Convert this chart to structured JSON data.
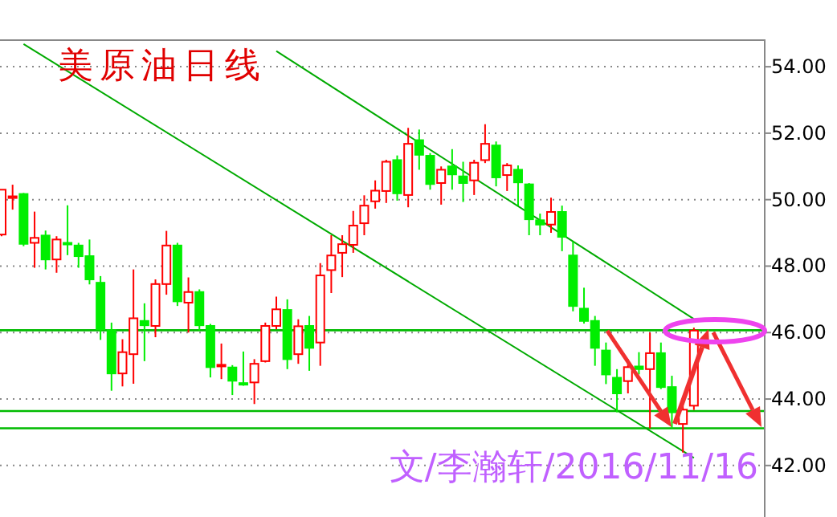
{
  "chart_data": {
    "type": "candlestick",
    "title": "美原油日线",
    "annotations": [
      "文/李瀚轩/2016/11/16"
    ],
    "categories": [
      null,
      null,
      null,
      null,
      null,
      null,
      null,
      null,
      null,
      null,
      null,
      null,
      null,
      null,
      null,
      null,
      null,
      null,
      null,
      null,
      null,
      null,
      null,
      null,
      null,
      null,
      null,
      null,
      null,
      null,
      null,
      null,
      null,
      null,
      null,
      null,
      null,
      null,
      null,
      null,
      null,
      null,
      null,
      null,
      null,
      null,
      null,
      null,
      null,
      null,
      null,
      null,
      null,
      null,
      null,
      null,
      null,
      null,
      null,
      null,
      null,
      null,
      null,
      null
    ],
    "ohlc": [
      [
        48.95,
        50.3,
        48.9,
        50.3
      ],
      [
        50.05,
        50.45,
        49.7,
        50.1
      ],
      [
        50.17,
        50.2,
        48.6,
        48.67
      ],
      [
        48.7,
        49.64,
        47.95,
        48.85
      ],
      [
        48.92,
        49.07,
        47.9,
        48.2
      ],
      [
        48.2,
        48.9,
        47.8,
        48.8
      ],
      [
        48.7,
        49.83,
        48.33,
        48.68
      ],
      [
        48.62,
        48.7,
        47.95,
        48.3
      ],
      [
        48.3,
        48.8,
        47.45,
        47.6
      ],
      [
        47.5,
        47.7,
        45.78,
        46.1
      ],
      [
        46.07,
        46.3,
        44.25,
        44.77
      ],
      [
        44.77,
        45.8,
        44.38,
        45.41
      ],
      [
        45.35,
        47.9,
        44.46,
        46.43
      ],
      [
        46.35,
        46.88,
        45.14,
        46.22
      ],
      [
        46.2,
        47.6,
        45.86,
        47.46
      ],
      [
        47.46,
        49.06,
        47.14,
        48.62
      ],
      [
        48.62,
        48.7,
        46.8,
        46.94
      ],
      [
        46.9,
        47.66,
        46.0,
        47.22
      ],
      [
        47.22,
        47.3,
        46.06,
        46.22
      ],
      [
        46.2,
        46.26,
        44.65,
        44.96
      ],
      [
        45.0,
        45.67,
        44.6,
        45.03
      ],
      [
        44.95,
        45.02,
        44.12,
        44.55
      ],
      [
        44.48,
        45.43,
        44.4,
        44.45
      ],
      [
        44.5,
        45.2,
        43.85,
        45.06
      ],
      [
        45.14,
        46.3,
        45.1,
        46.2
      ],
      [
        46.2,
        47.08,
        46.1,
        46.7
      ],
      [
        46.68,
        47.0,
        44.9,
        45.2
      ],
      [
        45.35,
        46.4,
        45.06,
        46.19
      ],
      [
        46.2,
        46.5,
        44.85,
        45.54
      ],
      [
        45.7,
        48.09,
        45.0,
        47.72
      ],
      [
        47.88,
        48.93,
        47.19,
        48.32
      ],
      [
        48.4,
        48.93,
        47.67,
        48.66
      ],
      [
        48.64,
        49.66,
        48.4,
        49.22
      ],
      [
        49.29,
        50.13,
        48.93,
        49.82
      ],
      [
        49.95,
        50.58,
        49.73,
        50.27
      ],
      [
        50.26,
        51.2,
        49.9,
        51.14
      ],
      [
        51.19,
        51.33,
        49.97,
        50.19
      ],
      [
        50.14,
        52.16,
        49.77,
        51.68
      ],
      [
        51.79,
        52.11,
        50.9,
        51.35
      ],
      [
        51.32,
        51.4,
        50.3,
        50.47
      ],
      [
        50.5,
        51.0,
        49.85,
        50.9
      ],
      [
        51.0,
        51.52,
        50.3,
        50.76
      ],
      [
        50.7,
        51.14,
        49.93,
        50.5
      ],
      [
        50.58,
        51.2,
        50.14,
        51.11
      ],
      [
        51.19,
        52.27,
        51.1,
        51.68
      ],
      [
        51.63,
        51.75,
        50.4,
        50.67
      ],
      [
        50.74,
        51.1,
        50.26,
        51.03
      ],
      [
        50.9,
        51.03,
        49.82,
        50.52
      ],
      [
        50.46,
        50.5,
        48.93,
        49.41
      ],
      [
        49.38,
        49.58,
        48.93,
        49.25
      ],
      [
        49.25,
        50.06,
        49.0,
        49.63
      ],
      [
        49.63,
        49.82,
        48.45,
        48.88
      ],
      [
        48.32,
        48.74,
        46.64,
        46.8
      ],
      [
        46.72,
        47.35,
        46.27,
        46.35
      ],
      [
        46.35,
        46.5,
        45.0,
        45.54
      ],
      [
        45.46,
        45.7,
        44.45,
        44.74
      ],
      [
        44.64,
        44.9,
        43.6,
        44.17
      ],
      [
        44.54,
        45.2,
        44.17,
        44.96
      ],
      [
        44.98,
        45.41,
        44.74,
        44.9
      ],
      [
        44.9,
        46.0,
        43.12,
        45.38
      ],
      [
        45.38,
        45.7,
        44.3,
        44.36
      ],
      [
        44.36,
        44.7,
        43.12,
        43.6
      ],
      [
        43.25,
        43.8,
        42.39,
        43.68
      ],
      [
        43.8,
        46.15,
        43.67,
        46.06
      ]
    ],
    "colors": [
      "#ff0000",
      "#ff0000",
      "#00ee00",
      "#ff0000",
      "#00ee00",
      "#ff0000",
      "#00ee00",
      "#00ee00",
      "#00ee00",
      "#00ee00",
      "#00ee00",
      "#ff0000",
      "#ff0000",
      "#00ee00",
      "#ff0000",
      "#ff0000",
      "#00ee00",
      "#ff0000",
      "#00ee00",
      "#00ee00",
      "#ff0000",
      "#00ee00",
      "#00ee00",
      "#ff0000",
      "#ff0000",
      "#ff0000",
      "#00ee00",
      "#ff0000",
      "#00ee00",
      "#ff0000",
      "#ff0000",
      "#ff0000",
      "#ff0000",
      "#ff0000",
      "#ff0000",
      "#ff0000",
      "#00ee00",
      "#ff0000",
      "#00ee00",
      "#00ee00",
      "#ff0000",
      "#00ee00",
      "#00ee00",
      "#ff0000",
      "#ff0000",
      "#00ee00",
      "#ff0000",
      "#00ee00",
      "#00ee00",
      "#00ee00",
      "#ff0000",
      "#00ee00",
      "#00ee00",
      "#00ee00",
      "#00ee00",
      "#00ee00",
      "#00ee00",
      "#ff0000",
      "#00ee00",
      "#ff0000",
      "#00ee00",
      "#00ee00",
      "#ff0000",
      "#ff0000"
    ],
    "series": [
      {
        "type": "line",
        "color": "#00aa00",
        "values": [
          null,
          null,
          54.68,
          null,
          null,
          null,
          null,
          null,
          null,
          null,
          null,
          null,
          null,
          null,
          null,
          null,
          null,
          null,
          null,
          null,
          null,
          null,
          null,
          null,
          null,
          null,
          null,
          null,
          null,
          null,
          null,
          null,
          null,
          null,
          null,
          null,
          null,
          null,
          null,
          null,
          null,
          null,
          null,
          null,
          null,
          null,
          null,
          null,
          null,
          null,
          null,
          null,
          null,
          null,
          null,
          null,
          null,
          null,
          null,
          null,
          null,
          null,
          null,
          42.23
        ]
      },
      {
        "type": "line",
        "color": "#00aa00",
        "values": [
          null,
          null,
          null,
          null,
          null,
          null,
          null,
          null,
          null,
          null,
          null,
          null,
          null,
          null,
          null,
          null,
          null,
          null,
          null,
          null,
          null,
          null,
          null,
          null,
          null,
          54.47,
          null,
          null,
          null,
          null,
          null,
          null,
          null,
          null,
          null,
          null,
          null,
          null,
          null,
          null,
          null,
          null,
          null,
          null,
          null,
          null,
          null,
          null,
          null,
          null,
          null,
          null,
          null,
          null,
          null,
          null,
          null,
          null,
          null,
          null,
          null,
          null,
          null,
          46.41
        ]
      }
    ],
    "ref_lines": [
      {
        "axis": "y",
        "value": 46.07,
        "color": "#00bb00"
      },
      {
        "axis": "y",
        "value": 43.64,
        "color": "#00bb00"
      },
      {
        "axis": "y",
        "value": 43.12,
        "color": "#00bb00"
      }
    ],
    "ylim": [
      40.45,
      54.8
    ],
    "yticks": [
      {
        "value": 42,
        "label": "42.00"
      },
      {
        "value": 44,
        "label": "44.00"
      },
      {
        "value": 46,
        "label": "46.00"
      },
      {
        "value": 48,
        "label": "48.00"
      },
      {
        "value": 50,
        "label": "50.00"
      },
      {
        "value": 52,
        "label": "52.00"
      },
      {
        "value": 54,
        "label": "54.00"
      }
    ],
    "grid": "y",
    "tick_labels": "y"
  }
}
